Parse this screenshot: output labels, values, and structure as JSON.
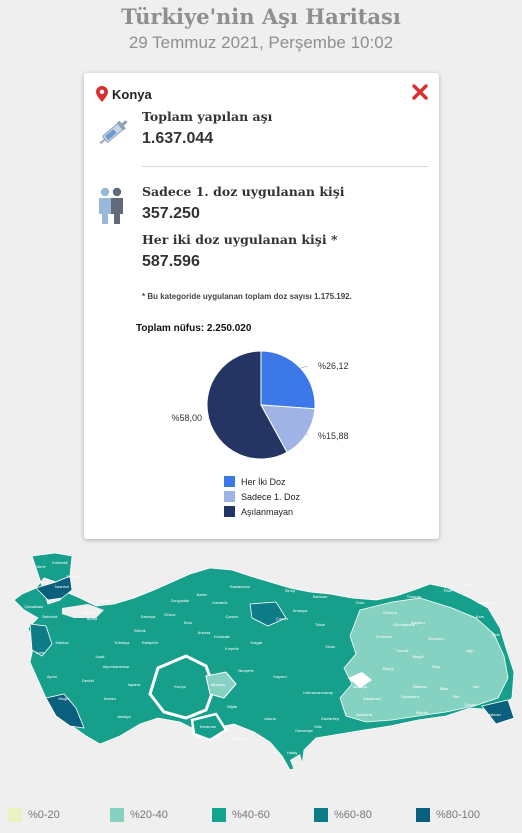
{
  "header": {
    "title": "Türkiye'nin Aşı Haritası",
    "date": "29 Temmuz 2021, Perşembe 10:02"
  },
  "popup": {
    "location": "Konya",
    "location_icon": "map-pin-icon",
    "close_icon": "close-icon",
    "total": {
      "icon": "syringe-icon",
      "label": "Toplam yapılan aşı",
      "value": "1.637.044"
    },
    "first_dose": {
      "icon": "people-icon",
      "label": "Sadece 1. doz uygulanan kişi",
      "value": "357.250"
    },
    "both_doses": {
      "label": "Her iki doz uygulanan kişi *",
      "value": "587.596"
    },
    "footnote": "* Bu kategoride uygulanan toplam doz sayısı 1.175.192."
  },
  "chart_data": {
    "type": "pie",
    "title": "Toplam nüfus: 2.250.020",
    "slices": [
      {
        "name": "Her İki Doz",
        "value": 26.12,
        "label": "%26,12",
        "color": "#3c78e8"
      },
      {
        "name": "Sadece 1. Doz",
        "value": 15.88,
        "label": "%15,88",
        "color": "#9fb4e4"
      },
      {
        "name": "Aşılanmayan",
        "value": 58.0,
        "label": "%58,00",
        "color": "#243563"
      }
    ],
    "legend_position": "bottom"
  },
  "map": {
    "highlighted_province": "Konya",
    "province_labels": [
      "Edirne",
      "İstanbul",
      "Kocaeli",
      "Bursa",
      "Balıkesir",
      "Manisa",
      "İzmir",
      "Aydın",
      "Muğla",
      "Denizli",
      "Afyonkarahisar",
      "Konya",
      "Aksaray",
      "Karaman",
      "Mersin",
      "Adana",
      "Antalya",
      "Ankara",
      "Kastamonu",
      "Samsun",
      "Ordu",
      "Trabzon",
      "Sivas",
      "Kayseri",
      "Malatya",
      "Elazığ",
      "Erzurum",
      "Kars",
      "Ağrı",
      "Van",
      "Muş",
      "Bitlis",
      "Diyarbakır",
      "Mardin",
      "Batman",
      "Şanlıurfa",
      "Gaziantep",
      "Kahramanmaraş",
      "Adıyaman",
      "Hakkari",
      "Erzincan",
      "Tunceli",
      "Bingöl",
      "Yozgat",
      "Çorum",
      "Amasya",
      "Tokat",
      "Giresun",
      "Gümüşhane",
      "Bayburt",
      "Rize",
      "Artvin",
      "Ardahan",
      "Iğdır",
      "Siirt",
      "Şırnak",
      "Osmaniye",
      "Hatay",
      "Kilis",
      "Niğde",
      "Nevşehir",
      "Kırşehir",
      "Kırıkkale",
      "Çankırı",
      "Karabük",
      "Bartın",
      "Zonguldak",
      "Düzce",
      "Bolu",
      "Sakarya",
      "Bilecik",
      "Kütahya",
      "Eskişehir",
      "Uşak",
      "Isparta",
      "Burdur",
      "Çanakkale",
      "Tekirdağ",
      "Kırklareli",
      "Yalova",
      "Sinop"
    ]
  },
  "map_legend": [
    {
      "label": "%0-20",
      "color": "#eaf2c4"
    },
    {
      "label": "%20-40",
      "color": "#86d2c2"
    },
    {
      "label": "%40-60",
      "color": "#14a58e"
    },
    {
      "label": "%60-80",
      "color": "#0d7c86"
    },
    {
      "label": "%80-100",
      "color": "#0a5f7d"
    }
  ]
}
